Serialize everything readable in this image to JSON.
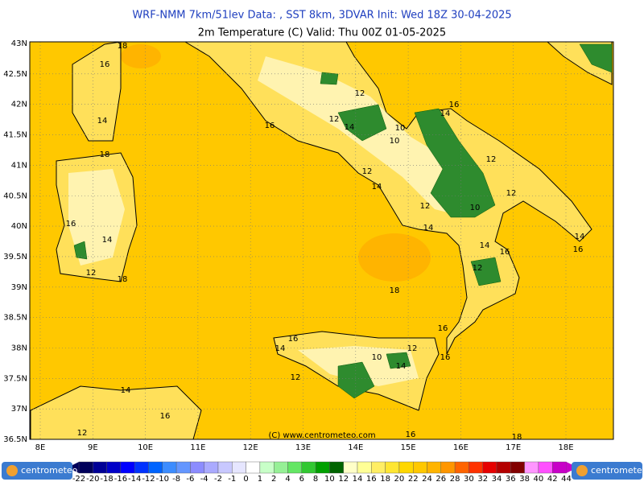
{
  "header": {
    "title": "WRF-NMM 7km/51lev  Data: , SST 8km, 3DVAR  Init: Wed 18Z 30-04-2025",
    "subtitle": "2m Temperature (C)  Valid: Thu 00Z 01-05-2025"
  },
  "map": {
    "lat_labels": [
      "43N",
      "42.5N",
      "42N",
      "41.5N",
      "41N",
      "40.5N",
      "40N",
      "39.5N",
      "39N",
      "38.5N",
      "38N",
      "37.5N",
      "37N",
      "36.5N"
    ],
    "lon_labels": [
      "8E",
      "9E",
      "10E",
      "11E",
      "12E",
      "13E",
      "14E",
      "15E",
      "16E",
      "17E",
      "18E"
    ],
    "contour_labels": [
      "16",
      "18",
      "14",
      "18",
      "16",
      "14",
      "12",
      "18",
      "16",
      "12",
      "12",
      "14",
      "10",
      "10",
      "16",
      "14",
      "12",
      "14",
      "12",
      "12",
      "12",
      "10",
      "14",
      "14",
      "16",
      "14",
      "16",
      "12",
      "18",
      "16",
      "14",
      "16",
      "12",
      "10",
      "14",
      "12",
      "14",
      "16",
      "12",
      "16",
      "18",
      "16"
    ],
    "credit": "(C) www.centrometeo.com"
  },
  "colorbar": {
    "labels": [
      "-22",
      "-20",
      "-18",
      "-16",
      "-14",
      "-12",
      "-10",
      "-8",
      "-6",
      "-4",
      "-2",
      "-1",
      "0",
      "1",
      "2",
      "4",
      "6",
      "8",
      "10",
      "12",
      "14",
      "16",
      "18",
      "20",
      "22",
      "24",
      "26",
      "28",
      "30",
      "32",
      "34",
      "36",
      "38",
      "40",
      "42",
      "44"
    ],
    "colors": [
      "#00005a",
      "#000096",
      "#0000c8",
      "#0000ff",
      "#0032ff",
      "#0064ff",
      "#3c8cff",
      "#6496ff",
      "#8c8cff",
      "#aaaaff",
      "#c8c8ff",
      "#e6e6ff",
      "#ffffff",
      "#c8ffc8",
      "#96f096",
      "#64e664",
      "#32c832",
      "#00a000",
      "#006400",
      "#ffffc8",
      "#ffff96",
      "#ffee64",
      "#ffe632",
      "#ffd700",
      "#ffc800",
      "#ffb400",
      "#ff9600",
      "#ff6400",
      "#ff3200",
      "#e60000",
      "#b40000",
      "#820000",
      "#ff96ff",
      "#ff50ff",
      "#c800c8"
    ]
  },
  "logos": [
    "centrometeo",
    "centrometeo"
  ]
}
